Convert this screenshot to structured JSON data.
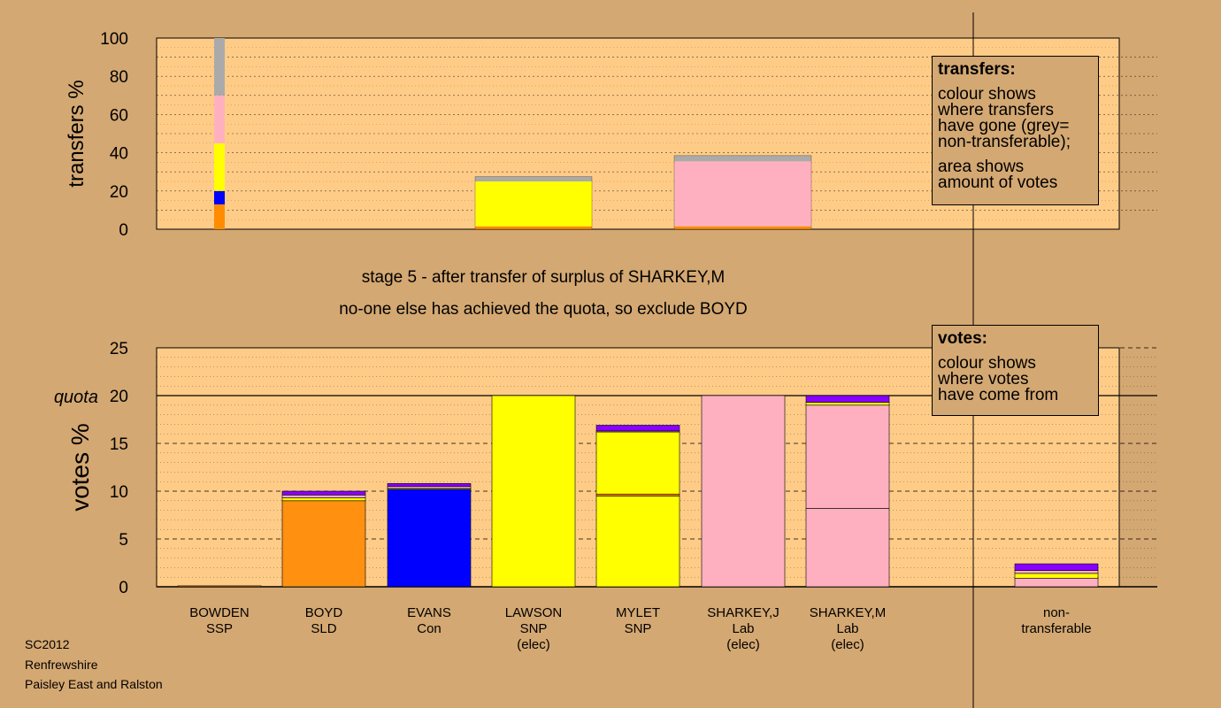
{
  "stage_text": "stage 5 - after transfer of surplus of SHARKEY,M",
  "action_text": "no-one else has achieved the quota, so exclude BOYD",
  "footer": {
    "line1": "SC2012",
    "line2": "Renfrewshire",
    "line3": "Paisley East and Ralston"
  },
  "legend_transfers": {
    "title": "transfers:",
    "lines": [
      "colour shows",
      "where transfers",
      "have gone (grey=",
      "non-transferable);"
    ],
    "lines2": [
      "area shows",
      "amount of votes"
    ]
  },
  "legend_votes": {
    "title": "votes:",
    "lines": [
      "colour shows",
      "where votes",
      "have come from"
    ]
  },
  "colors": {
    "background": "#d4a872",
    "plot_bg": "#ffcc88",
    "SSP": "#ff8c00",
    "SLD": "#ff9010",
    "Con": "#0000ff",
    "SNP": "#ffff00",
    "Lab": "#ffb0c0",
    "Other": "#8800ff",
    "NonTransferable": "#aaaaaa"
  },
  "chart_data": [
    {
      "type": "bar",
      "stacked": true,
      "ylabel": "transfers %",
      "ylim": [
        0,
        100
      ],
      "yticks": [
        0,
        20,
        40,
        60,
        80,
        100
      ],
      "grid": true,
      "bars": [
        {
          "name": "transferred-surplus",
          "width": "narrow",
          "segments": [
            {
              "color": "SSP",
              "value": 13
            },
            {
              "color": "Con",
              "value": 7
            },
            {
              "color": "SNP",
              "value": 25
            },
            {
              "color": "Lab",
              "value": 25
            },
            {
              "color": "NonTransferable",
              "value": 30
            }
          ]
        },
        {
          "name": "LAWSON",
          "segments": [
            {
              "color": "SSP",
              "value": 1.5
            },
            {
              "color": "SNP",
              "value": 23.5
            },
            {
              "color": "NonTransferable",
              "value": 2.5
            }
          ]
        },
        {
          "name": "SHARKEY,J",
          "segments": [
            {
              "color": "SSP",
              "value": 1.5
            },
            {
              "color": "Lab",
              "value": 34
            },
            {
              "color": "NonTransferable",
              "value": 3
            }
          ]
        }
      ]
    },
    {
      "type": "bar",
      "stacked": true,
      "ylabel": "votes %",
      "ylim": [
        0,
        25
      ],
      "yticks": [
        0,
        5,
        10,
        15,
        20,
        25
      ],
      "quota": 20,
      "quota_label": "quota",
      "grid": true,
      "categories": [
        {
          "name": "BOWDEN",
          "party": "SSP",
          "elected": ""
        },
        {
          "name": "BOYD",
          "party": "SLD",
          "elected": ""
        },
        {
          "name": "EVANS",
          "party": "Con",
          "elected": ""
        },
        {
          "name": "LAWSON",
          "party": "SNP",
          "elected": "(elec)"
        },
        {
          "name": "MYLET",
          "party": "SNP",
          "elected": ""
        },
        {
          "name": "SHARKEY,J",
          "party": "Lab",
          "elected": "(elec)"
        },
        {
          "name": "SHARKEY,M",
          "party": "Lab",
          "elected": "(elec)"
        },
        {
          "name": "",
          "party": "",
          "elected": ""
        },
        {
          "name": "non-",
          "party": "transferable",
          "elected": ""
        }
      ],
      "bars": [
        [
          {
            "color": "SSP",
            "value": 0.1
          }
        ],
        [
          {
            "color": "SLD",
            "value": 9.0
          },
          {
            "color": "SNP",
            "value": 0.3
          },
          {
            "color": "Lab",
            "value": 0.3
          },
          {
            "color": "Other",
            "value": 0.4
          }
        ],
        [
          {
            "color": "Con",
            "value": 10.2
          },
          {
            "color": "SNP",
            "value": 0.1
          },
          {
            "color": "Lab",
            "value": 0.2
          },
          {
            "color": "Other",
            "value": 0.3
          }
        ],
        [
          {
            "color": "SNP",
            "value": 20.0
          }
        ],
        [
          {
            "color": "SNP",
            "value": 9.5
          },
          {
            "color": "SSP",
            "value": 0.2
          },
          {
            "color": "SNP",
            "value": 6.5
          },
          {
            "color": "Lab",
            "value": 0.1
          },
          {
            "color": "Other",
            "value": 0.6
          }
        ],
        [
          {
            "color": "Lab",
            "value": 20.0
          }
        ],
        [
          {
            "color": "Lab",
            "value": 8.2
          },
          {
            "color": "Lab",
            "value": 10.8
          },
          {
            "color": "SNP",
            "value": 0.3
          },
          {
            "color": "Other",
            "value": 0.7
          }
        ],
        [],
        [
          {
            "color": "Lab",
            "value": 0.9
          },
          {
            "color": "SNP",
            "value": 0.5
          },
          {
            "color": "Lab",
            "value": 0.3
          },
          {
            "color": "Other",
            "value": 0.7
          }
        ]
      ]
    }
  ]
}
